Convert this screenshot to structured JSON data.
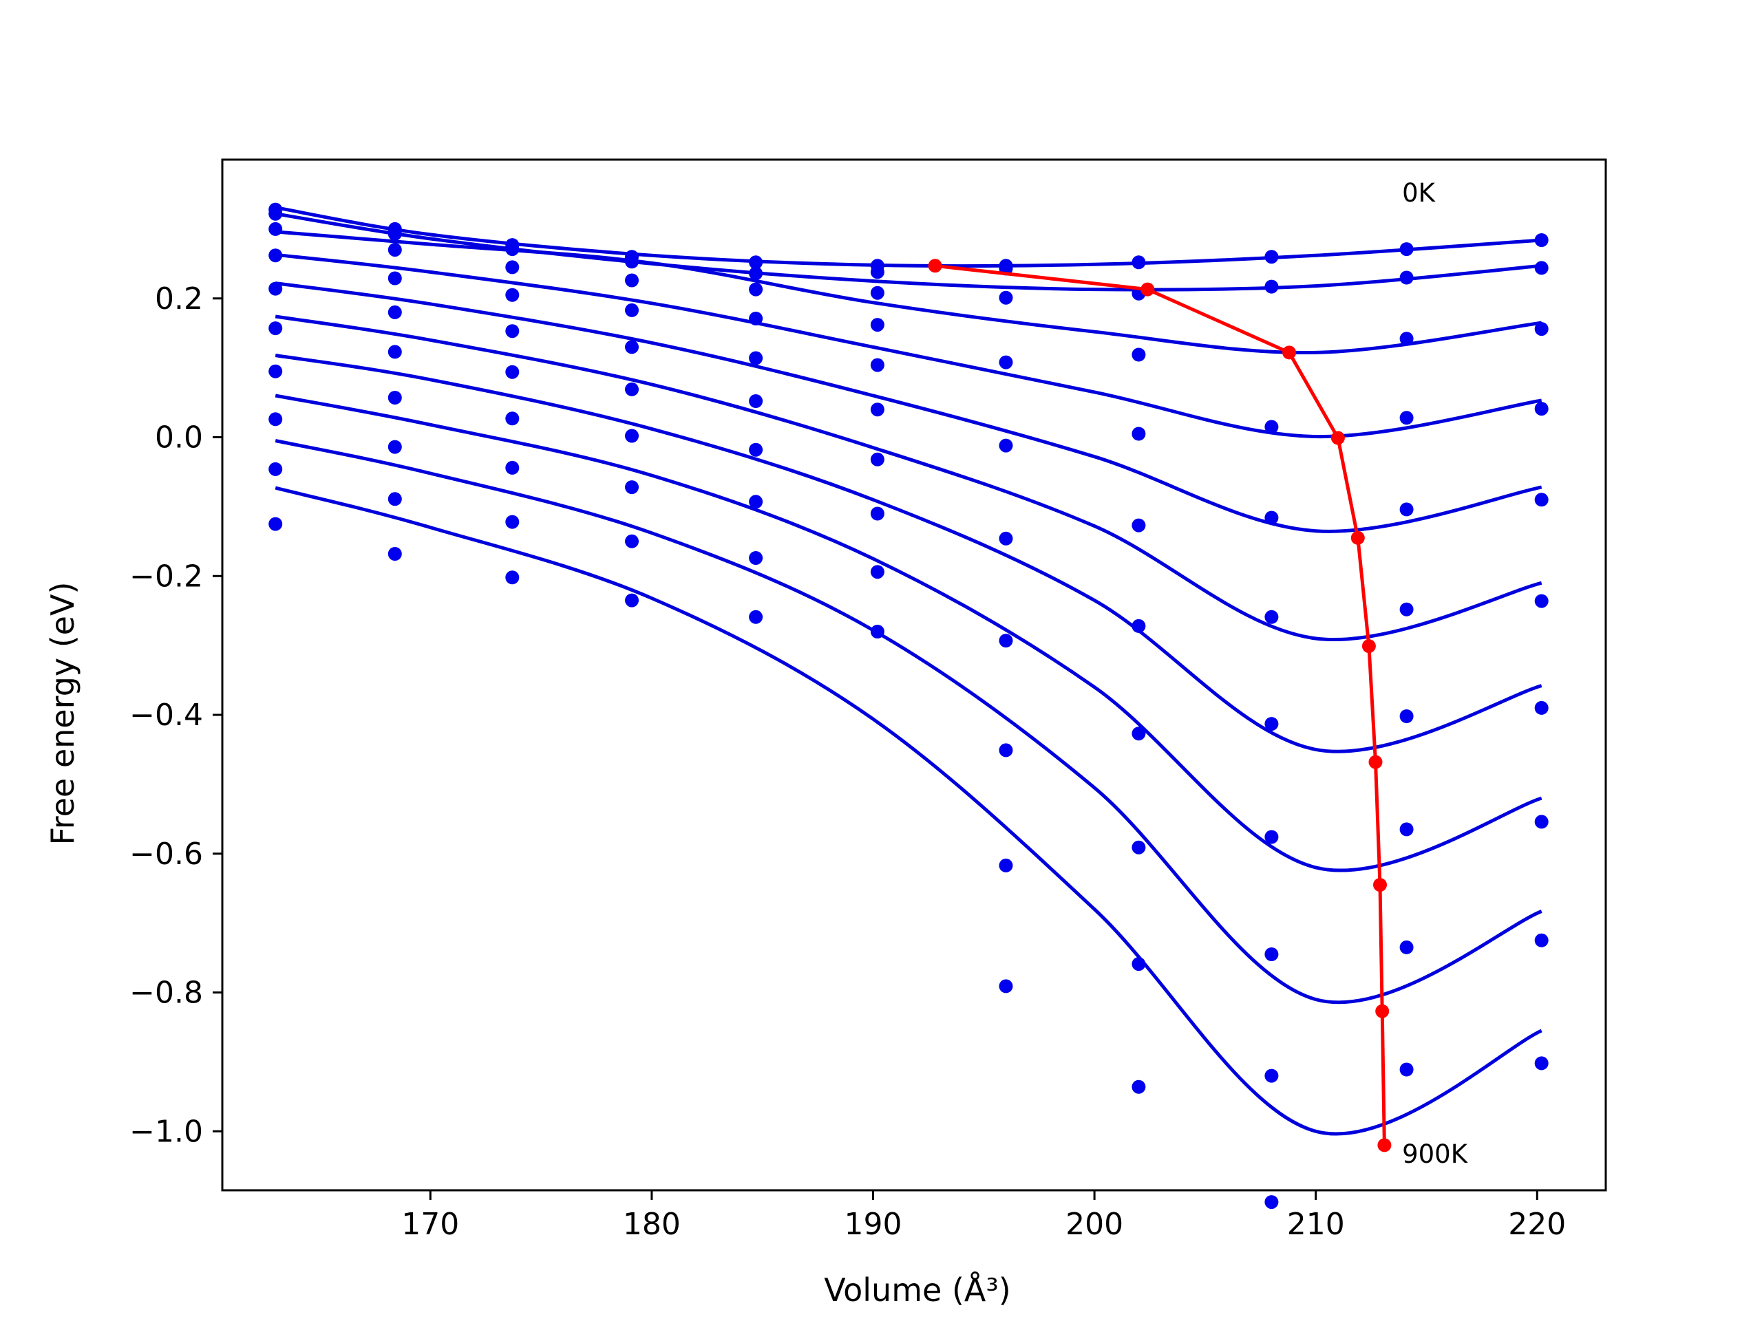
{
  "chart_data": {
    "type": "line",
    "xlabel": "Volume (Å³)",
    "ylabel": "Free energy (eV)",
    "xlim": [
      160.6,
      223.1
    ],
    "ylim": [
      -1.085,
      0.4
    ],
    "x_ticks": [
      170,
      180,
      190,
      200,
      210,
      220
    ],
    "x_tick_labels": [
      "170",
      "180",
      "190",
      "200",
      "210",
      "220"
    ],
    "y_ticks": [
      0.2,
      0.0,
      -0.2,
      -0.4,
      -0.6,
      -0.8,
      -1.0
    ],
    "y_tick_labels": [
      "0.2",
      "0.0",
      "−0.2",
      "−0.4",
      "−0.6",
      "−0.8",
      "−1.0"
    ],
    "grid": false,
    "annotations": [
      {
        "text": "0K",
        "x": 213.9,
        "y": 0.35
      },
      {
        "text": "900K",
        "x": 213.9,
        "y": -1.035
      }
    ],
    "colors": {
      "points": "#0000ee",
      "fits": "#0000dd",
      "minima": "#ff0000"
    },
    "volumes": [
      163.0,
      168.4,
      173.7,
      179.1,
      184.7,
      190.2,
      196.0,
      202.0,
      208.0,
      214.1,
      220.2
    ],
    "points": [
      [
        0.328,
        0.3,
        0.277,
        0.26,
        0.252,
        0.247,
        0.247,
        0.252,
        0.26,
        0.271,
        0.284
      ],
      [
        0.322,
        0.293,
        0.271,
        0.253,
        0.236,
        0.238,
        0.243,
        0.207,
        0.217,
        0.23,
        0.244
      ],
      [
        0.3,
        0.27,
        0.245,
        0.226,
        0.213,
        0.208,
        0.201,
        0.119,
        0.015,
        0.142,
        0.156
      ],
      [
        0.262,
        0.229,
        0.205,
        0.183,
        0.171,
        0.162,
        0.108,
        0.005,
        -0.116,
        0.028,
        0.041
      ],
      [
        0.214,
        0.18,
        0.153,
        0.13,
        0.114,
        0.104,
        -0.012,
        -0.127,
        -0.259,
        -0.104,
        -0.09
      ],
      [
        0.157,
        0.123,
        0.094,
        0.069,
        0.052,
        0.04,
        -0.146,
        -0.272,
        -0.413,
        -0.248,
        -0.236
      ],
      [
        0.095,
        0.057,
        0.027,
        0.002,
        -0.018,
        -0.032,
        -0.293,
        -0.427,
        -0.576,
        -0.402,
        -0.39
      ],
      [
        0.026,
        -0.014,
        -0.044,
        -0.072,
        -0.093,
        -0.11,
        -0.451,
        -0.591,
        -0.745,
        -0.565,
        -0.554
      ],
      [
        -0.046,
        -0.089,
        -0.122,
        -0.15,
        -0.174,
        -0.194,
        -0.617,
        -0.759,
        -0.92,
        -0.735,
        -0.725
      ],
      [
        -0.125,
        -0.168,
        -0.202,
        -0.235,
        -0.259,
        -0.28,
        -0.791,
        -0.936,
        -1.102,
        -0.911,
        -0.902
      ]
    ],
    "fit_curves": [
      {
        "x": [
          163,
          170,
          180,
          190,
          200,
          210,
          220.2
        ],
        "y": [
          0.331,
          0.292,
          0.262,
          0.248,
          0.249,
          0.262,
          0.284
        ]
      },
      {
        "x": [
          163,
          170,
          180,
          190,
          200,
          210,
          220.2
        ],
        "y": [
          0.322,
          0.286,
          0.25,
          0.225,
          0.213,
          0.218,
          0.247
        ]
      },
      {
        "x": [
          163,
          170,
          180,
          190,
          200,
          210,
          220.2
        ],
        "y": [
          0.296,
          0.278,
          0.251,
          0.194,
          0.152,
          0.122,
          0.165
        ]
      },
      {
        "x": [
          163,
          170,
          180,
          190,
          200,
          210,
          220.2
        ],
        "y": [
          0.263,
          0.238,
          0.193,
          0.13,
          0.065,
          0.001,
          0.053
        ]
      },
      {
        "x": [
          163,
          170,
          180,
          190,
          200,
          210,
          220.2
        ],
        "y": [
          0.222,
          0.192,
          0.136,
          0.06,
          -0.028,
          -0.135,
          -0.072
        ]
      },
      {
        "x": [
          163,
          170,
          180,
          190,
          200,
          210,
          220.2
        ],
        "y": [
          0.174,
          0.14,
          0.076,
          -0.015,
          -0.128,
          -0.29,
          -0.21
        ]
      },
      {
        "x": [
          163,
          170,
          180,
          190,
          200,
          210,
          220.2
        ],
        "y": [
          0.118,
          0.083,
          0.012,
          -0.09,
          -0.235,
          -0.45,
          -0.358
        ]
      },
      {
        "x": [
          163,
          170,
          180,
          190,
          200,
          210,
          220.2
        ],
        "y": [
          0.06,
          0.018,
          -0.055,
          -0.175,
          -0.36,
          -0.62,
          -0.52
        ]
      },
      {
        "x": [
          163,
          170,
          180,
          190,
          200,
          210,
          220.2
        ],
        "y": [
          -0.005,
          -0.052,
          -0.138,
          -0.278,
          -0.505,
          -0.81,
          -0.683
        ]
      },
      {
        "x": [
          163,
          170,
          180,
          190,
          200,
          210,
          220.2
        ],
        "y": [
          -0.073,
          -0.13,
          -0.232,
          -0.406,
          -0.68,
          -1.0,
          -0.855
        ]
      }
    ],
    "minima_line": {
      "x": [
        192.8,
        202.4,
        208.8,
        211.0,
        211.9,
        212.4,
        212.7,
        212.9,
        213.0,
        213.1
      ],
      "y": [
        0.247,
        0.213,
        0.122,
        -0.001,
        -0.145,
        -0.301,
        -0.468,
        -0.645,
        -0.827,
        -1.02
      ]
    }
  }
}
